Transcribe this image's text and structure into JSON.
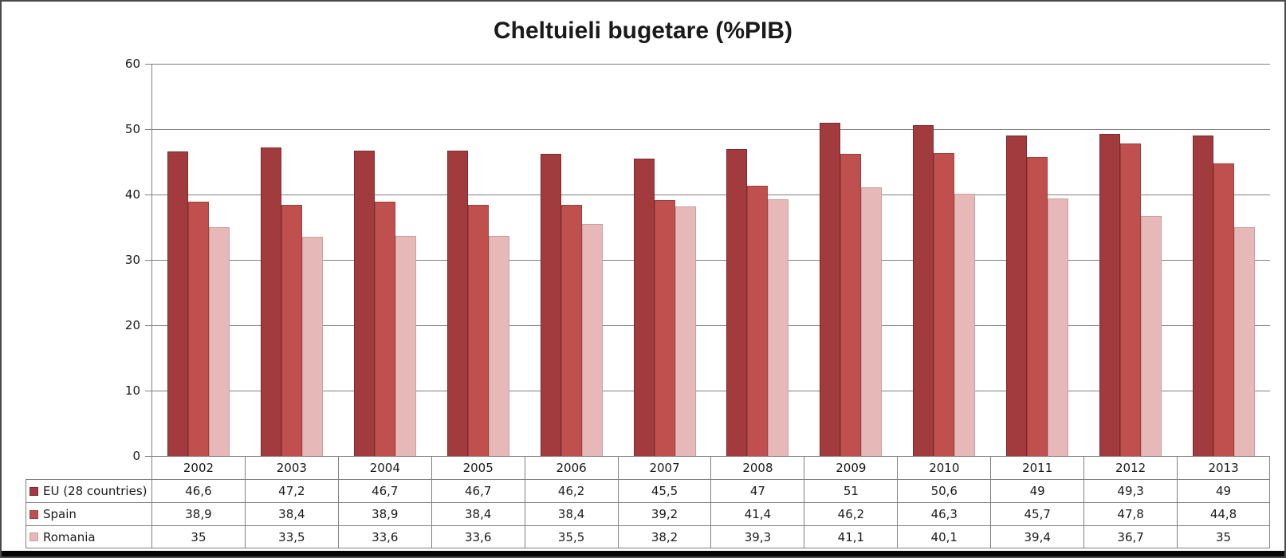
{
  "title": "Cheltuieli bugetare (%PIB)",
  "chart_data": {
    "type": "bar",
    "title": "Cheltuieli bugetare (%PIB)",
    "xlabel": "",
    "ylabel": "",
    "ylim": [
      0,
      60
    ],
    "yticks": [
      0,
      10,
      20,
      30,
      40,
      50,
      60
    ],
    "grid": true,
    "legend_position": "table-left",
    "categories": [
      "2002",
      "2003",
      "2004",
      "2005",
      "2006",
      "2007",
      "2008",
      "2009",
      "2010",
      "2011",
      "2012",
      "2013"
    ],
    "series": [
      {
        "name": "EU (28 countries)",
        "color": "#A23B3D",
        "border_color": "#7C2B2D",
        "values": [
          46.6,
          47.2,
          46.7,
          46.7,
          46.2,
          45.5,
          47,
          51,
          50.6,
          49,
          49.3,
          49
        ],
        "values_display": [
          "46,6",
          "47,2",
          "46,7",
          "46,7",
          "46,2",
          "45,5",
          "47",
          "51",
          "50,6",
          "49",
          "49,3",
          "49"
        ]
      },
      {
        "name": "Spain",
        "color": "#C0504D",
        "border_color": "#9C403E",
        "values": [
          38.9,
          38.4,
          38.9,
          38.4,
          38.4,
          39.2,
          41.4,
          46.2,
          46.3,
          45.7,
          47.8,
          44.8
        ],
        "values_display": [
          "38,9",
          "38,4",
          "38,9",
          "38,4",
          "38,4",
          "39,2",
          "41,4",
          "46,2",
          "46,3",
          "45,7",
          "47,8",
          "44,8"
        ]
      },
      {
        "name": "Romania",
        "color": "#E6B9B8",
        "border_color": "#CD9E9D",
        "values": [
          35,
          33.5,
          33.6,
          33.6,
          35.5,
          38.2,
          39.3,
          41.1,
          40.1,
          39.4,
          36.7,
          35
        ],
        "values_display": [
          "35",
          "33,5",
          "33,6",
          "33,6",
          "35,5",
          "38,2",
          "39,3",
          "41,1",
          "40,1",
          "39,4",
          "36,7",
          "35"
        ]
      }
    ]
  },
  "colors": {
    "gridline": "#808080",
    "axis": "#808080",
    "table_border": "#808080",
    "text": "#1a1a1a",
    "background": "#ffffff"
  }
}
